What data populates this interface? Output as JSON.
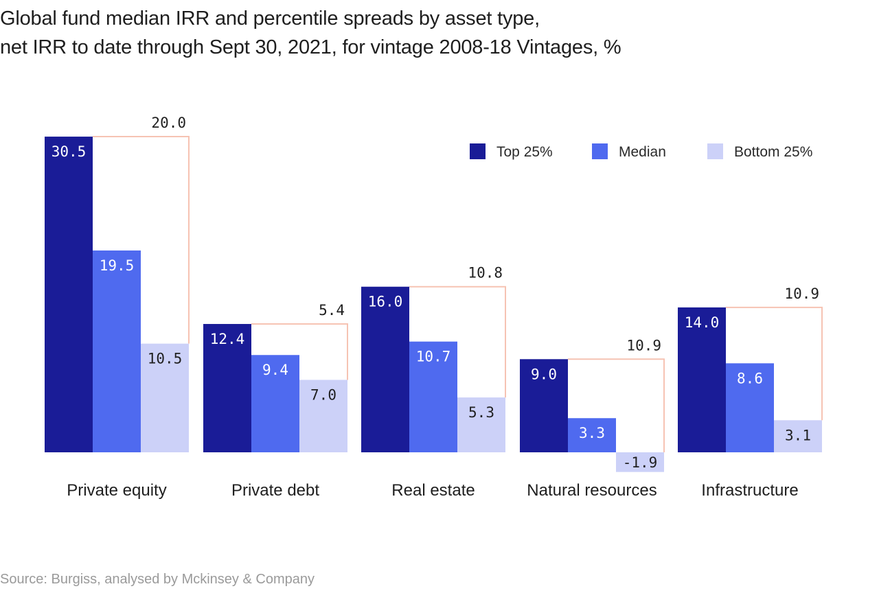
{
  "title": {
    "line1": "Global fund median IRR and percentile spreads by asset type,",
    "line2": "net IRR to date through Sept 30, 2021, for vintage 2008-18 Vintages, %"
  },
  "source": "Source: Burgiss, analysed by Mckinsey & Company",
  "colors": {
    "top25": "#1a1c97",
    "median": "#4f6aef",
    "bottom25": "#ccd1f8",
    "spread_box": "#f6c3b3",
    "label_light": "#ffffff",
    "label_dark": "#1f1f1f"
  },
  "chart_data": {
    "type": "bar",
    "title": "Global fund median IRR and percentile spreads by asset type, net IRR to date through Sept 30, 2021, for vintage 2008-18 Vintages, %",
    "categories": [
      "Private equity",
      "Private debt",
      "Real estate",
      "Natural resources",
      "Infrastructure"
    ],
    "series": [
      {
        "name": "Top 25%",
        "values": [
          30.5,
          12.4,
          16.0,
          9.0,
          14.0
        ]
      },
      {
        "name": "Median",
        "values": [
          19.5,
          9.4,
          10.7,
          3.3,
          8.6
        ]
      },
      {
        "name": "Bottom 25%",
        "values": [
          10.5,
          7.0,
          5.3,
          -1.9,
          3.1
        ]
      }
    ],
    "value_labels": [
      [
        "30.5",
        "19.5",
        "10.5"
      ],
      [
        "12.4",
        "9.4",
        "7.0"
      ],
      [
        "16.0",
        "10.7",
        "5.3"
      ],
      [
        "9.0",
        "3.3",
        "-1.9"
      ],
      [
        "14.0",
        "8.6",
        "3.1"
      ]
    ],
    "spread": {
      "name": "Top 25% minus Bottom 25% spread",
      "values": [
        20.0,
        5.4,
        10.8,
        10.9,
        10.9
      ],
      "labels": [
        "20.0",
        "5.4",
        "10.8",
        "10.9",
        "10.9"
      ]
    },
    "legend": {
      "position": "top-right",
      "entries": [
        "Top 25%",
        "Median",
        "Bottom 25%"
      ]
    },
    "xlabel": "",
    "ylabel": "",
    "ylim": [
      -2,
      31
    ],
    "grid": false
  }
}
